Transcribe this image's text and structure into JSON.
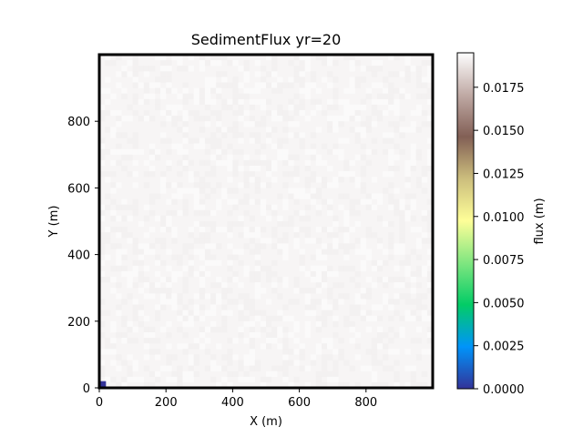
{
  "figure": {
    "title": "SedimentFlux yr=20"
  },
  "chart_data": {
    "type": "heatmap",
    "title": "SedimentFlux yr=20",
    "xlabel": "X (m)",
    "ylabel": "Y (m)",
    "xlim": [
      0,
      1000
    ],
    "ylim": [
      0,
      1000
    ],
    "x_ticks": [
      0,
      200,
      400,
      600,
      800
    ],
    "y_ticks": [
      0,
      200,
      400,
      600,
      800
    ],
    "x_tick_labels": [
      "0",
      "200",
      "400",
      "600",
      "800"
    ],
    "y_tick_labels": [
      "0",
      "200",
      "400",
      "600",
      "800"
    ],
    "grid": false,
    "field": {
      "dominant_value": 0.0195,
      "color_near": "#f7f5f5",
      "anomaly": {
        "x_range": [
          0,
          20
        ],
        "y_range": [
          0,
          20
        ],
        "value": 0.0
      }
    },
    "colorbar": {
      "label": "flux (m)",
      "vmin": 0.0,
      "vmax": 0.0195,
      "colormap": "terrain",
      "ticks": [
        0.0,
        0.0025,
        0.005,
        0.0075,
        0.01,
        0.0125,
        0.015,
        0.0175
      ],
      "tick_labels": [
        "0.0000",
        "0.0025",
        "0.0050",
        "0.0075",
        "0.0100",
        "0.0125",
        "0.0150",
        "0.0175"
      ],
      "colors": [
        "#333399",
        "#0094fa",
        "#02cc66",
        "#80e680",
        "#fefe98",
        "#ccbe7d",
        "#825f55",
        "#c0aaa5",
        "#fefefe"
      ]
    }
  }
}
